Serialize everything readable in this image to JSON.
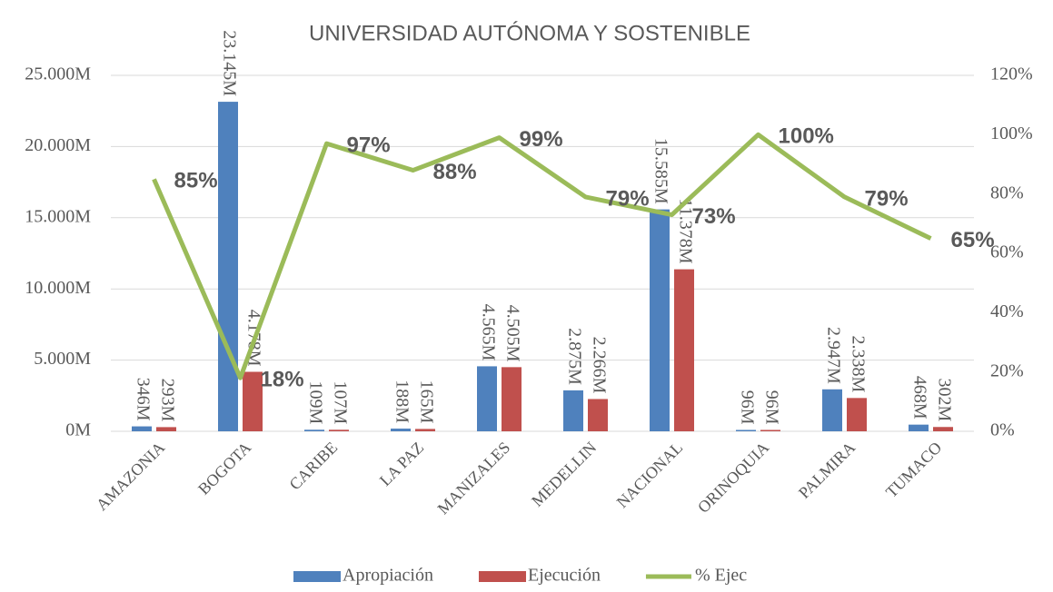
{
  "chart_data": {
    "type": "bar",
    "title": "UNIVERSIDAD AUTÓNOMA Y SOSTENIBLE",
    "categories": [
      "AMAZONIA",
      "BOGOTA",
      "CARIBE",
      "LA PAZ",
      "MANIZALES",
      "MEDELLIN",
      "NACIONAL",
      "ORINOQUIA",
      "PALMIRA",
      "TUMACO"
    ],
    "series": [
      {
        "name": "Apropiación",
        "type": "bar",
        "color": "#4f81bd",
        "values": [
          346,
          23145,
          109,
          188,
          4565,
          2875,
          15585,
          96,
          2947,
          468
        ],
        "value_labels": [
          "346M",
          "23.145M",
          "109M",
          "188M",
          "4.565M",
          "2.875M",
          "15.585M",
          "96M",
          "2.947M",
          "468M"
        ]
      },
      {
        "name": "Ejecución",
        "type": "bar",
        "color": "#c0504d",
        "values": [
          293,
          4178,
          107,
          165,
          4505,
          2266,
          11378,
          96,
          2338,
          302
        ],
        "value_labels": [
          "293M",
          "4.178M",
          "107M",
          "165M",
          "4.505M",
          "2.266M",
          "11.378M",
          "96M",
          "2.338M",
          "302M"
        ]
      },
      {
        "name": "% Ejec",
        "type": "line",
        "axis": "y2",
        "color": "#9bbb59",
        "values": [
          85,
          18,
          97,
          88,
          99,
          79,
          73,
          100,
          79,
          65
        ],
        "value_labels": [
          "85%",
          "18%",
          "97%",
          "88%",
          "99%",
          "79%",
          "73%",
          "100%",
          "79%",
          "65%"
        ]
      }
    ],
    "ylim": [
      0,
      25000
    ],
    "yticks": [
      {
        "value": 0,
        "label": "0M"
      },
      {
        "value": 5000,
        "label": "5.000M"
      },
      {
        "value": 10000,
        "label": "10.000M"
      },
      {
        "value": 15000,
        "label": "15.000M"
      },
      {
        "value": 20000,
        "label": "20.000M"
      },
      {
        "value": 25000,
        "label": "25.000M"
      }
    ],
    "y2lim": [
      0,
      120
    ],
    "y2ticks": [
      {
        "value": 0,
        "label": "0%"
      },
      {
        "value": 20,
        "label": "20%"
      },
      {
        "value": 40,
        "label": "40%"
      },
      {
        "value": 60,
        "label": "60%"
      },
      {
        "value": 80,
        "label": "80%"
      },
      {
        "value": 100,
        "label": "100%"
      },
      {
        "value": 120,
        "label": "120%"
      }
    ],
    "grid": true,
    "legend": "bottom"
  }
}
